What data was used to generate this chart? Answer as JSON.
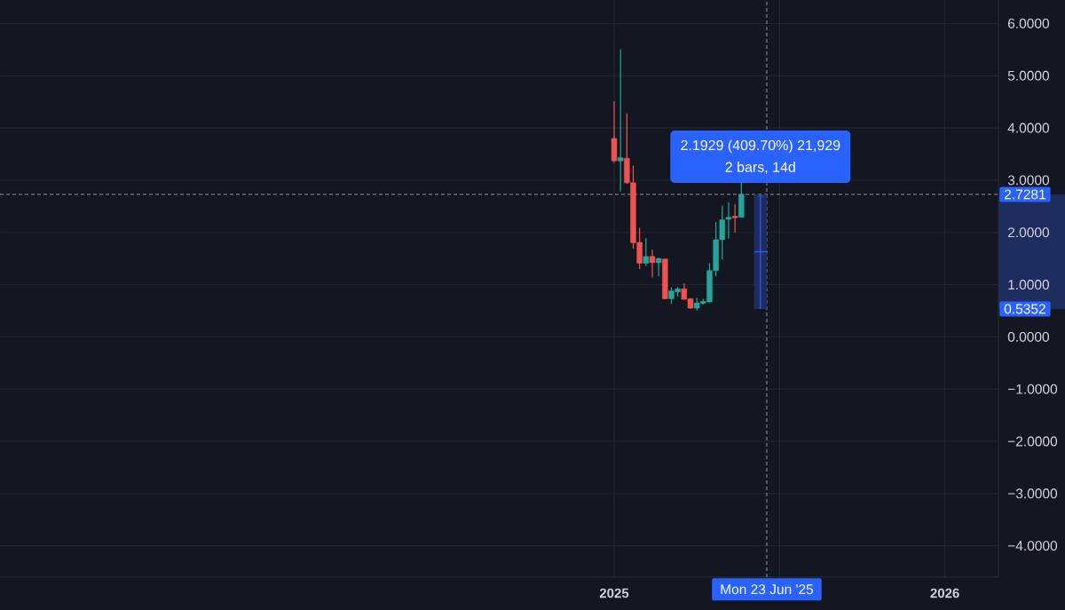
{
  "chart_data": {
    "type": "candlestick",
    "x": [
      "2025-01-06",
      "2025-01-13",
      "2025-01-20",
      "2025-01-27",
      "2025-02-03",
      "2025-02-10",
      "2025-02-17",
      "2025-02-24",
      "2025-03-03",
      "2025-03-10",
      "2025-03-17",
      "2025-03-24",
      "2025-03-31",
      "2025-04-07",
      "2025-04-14",
      "2025-04-21",
      "2025-04-28",
      "2025-05-05",
      "2025-05-12",
      "2025-05-19",
      "2025-05-26"
    ],
    "ohlc": [
      [
        3.8,
        4.51,
        3.33,
        3.37
      ],
      [
        3.37,
        5.5,
        2.78,
        3.43
      ],
      [
        3.42,
        4.28,
        2.93,
        2.95
      ],
      [
        2.95,
        3.28,
        1.69,
        1.8
      ],
      [
        1.81,
        2.09,
        1.3,
        1.41
      ],
      [
        1.41,
        1.89,
        1.36,
        1.54
      ],
      [
        1.54,
        1.67,
        1.14,
        1.42
      ],
      [
        1.42,
        1.52,
        1.16,
        1.5
      ],
      [
        1.49,
        1.5,
        0.72,
        0.73
      ],
      [
        0.73,
        0.95,
        0.63,
        0.88
      ],
      [
        0.86,
        0.95,
        0.77,
        0.92
      ],
      [
        0.92,
        1.02,
        0.71,
        0.72
      ],
      [
        0.73,
        0.74,
        0.54,
        0.55
      ],
      [
        0.55,
        0.75,
        0.51,
        0.65
      ],
      [
        0.64,
        0.73,
        0.62,
        0.68
      ],
      [
        0.67,
        1.41,
        0.65,
        1.27
      ],
      [
        1.27,
        2.2,
        1.16,
        1.86
      ],
      [
        1.86,
        2.51,
        1.48,
        2.24
      ],
      [
        2.25,
        2.58,
        1.88,
        2.29
      ],
      [
        2.31,
        2.54,
        2.0,
        2.28
      ],
      [
        2.29,
        2.97,
        2.28,
        2.73
      ]
    ],
    "colors": [
      "#ef5350",
      "#26a69a",
      "#ef5350",
      "#ef5350",
      "#ef5350",
      "#26a69a",
      "#ef5350",
      "#26a69a",
      "#ef5350",
      "#26a69a",
      "#26a69a",
      "#ef5350",
      "#ef5350",
      "#26a69a",
      "#26a69a",
      "#26a69a",
      "#26a69a",
      "#26a69a",
      "#26a69a",
      "#ef5350",
      "#26a69a"
    ],
    "series": [
      {
        "type": "bar",
        "x": [
          "2025-06-16"
        ],
        "base": [
          0.5352
        ],
        "values": [
          2.1929
        ],
        "color": "#1e2c5e",
        "value_labels": [
          "2.1929 (409.70%) 21,929"
        ]
      },
      {
        "type": "line",
        "x": [
          "2025-06-16",
          "2025-06-16"
        ],
        "values": [
          0.54,
          2.73
        ],
        "color": "#2962ff"
      },
      {
        "type": "line",
        "x": [
          "2025-06-09",
          "2025-06-23"
        ],
        "values": [
          1.63,
          1.63
        ],
        "color": "#2962ff"
      }
    ],
    "xlim": [
      "2023-03-02",
      "2026-03-05"
    ],
    "ylim": [
      -4.6,
      6.45
    ],
    "xticks": [
      {
        "value": "2025-01-06",
        "label": "2025"
      },
      {
        "value": "2025-07-07",
        "label": null
      },
      {
        "value": "2026-01-05",
        "label": "2026"
      }
    ],
    "yticks": [
      {
        "value": -4,
        "label": "−4.0000"
      },
      {
        "value": -3,
        "label": "−3.0000"
      },
      {
        "value": -2,
        "label": "−2.0000"
      },
      {
        "value": -1,
        "label": "−1.0000"
      },
      {
        "value": 0,
        "label": "0.0000"
      },
      {
        "value": 1,
        "label": "1.0000"
      },
      {
        "value": 2,
        "label": "2.0000"
      },
      {
        "value": 3,
        "label": "3.0000"
      },
      {
        "value": 4,
        "label": "4.0000"
      },
      {
        "value": 5,
        "label": "5.0000"
      },
      {
        "value": 6,
        "label": "6.0000"
      }
    ],
    "grid": true,
    "ref_lines": [
      {
        "axis": "y",
        "value": 2.7281,
        "label": "2.7281",
        "line_style": "dashed"
      },
      {
        "axis": "x",
        "value": "2025-06-23",
        "label": "Mon 23 Jun '25",
        "line_style": "dashed"
      }
    ],
    "annotations": [
      {
        "text": "2 bars, 14d",
        "x": "2025-06-16",
        "y": 2.7281
      },
      "0.5352"
    ]
  }
}
